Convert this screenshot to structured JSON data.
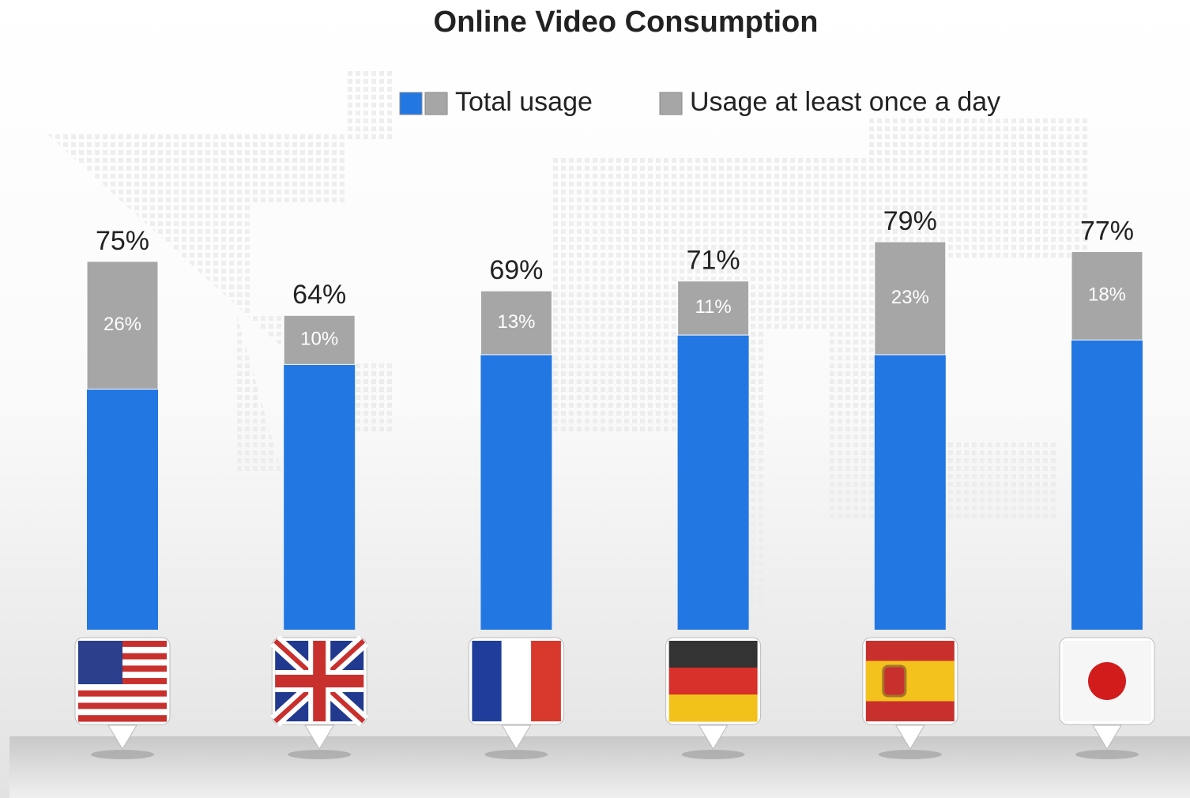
{
  "chart_data": {
    "type": "bar",
    "title": "Online Video Consumption",
    "categories": [
      null,
      null,
      null,
      null,
      null,
      null
    ],
    "series": [
      {
        "name": "Total usage",
        "color": "#2277e3",
        "values": [
          75,
          64,
          69,
          71,
          79,
          77
        ],
        "value_labels": [
          "75%",
          "64%",
          "69%",
          "71%",
          "79%",
          "77%"
        ]
      },
      {
        "name": "Usage at least once a day",
        "color": "#a6a6a6",
        "values": [
          26,
          10,
          13,
          11,
          23,
          18
        ],
        "value_labels": [
          "26%",
          "10%",
          "13%",
          "11%",
          "23%",
          "18%"
        ]
      }
    ]
  }
}
